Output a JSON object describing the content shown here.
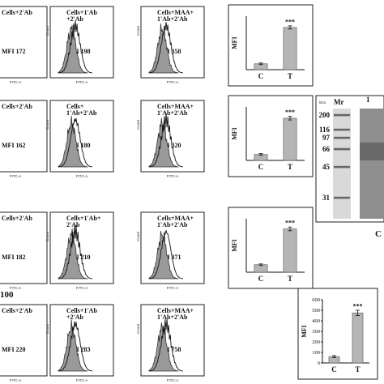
{
  "figure": {
    "row_tag": "100",
    "clipped_label": "C",
    "flow_panels": [
      {
        "label": "Cells+2'Ab",
        "mfi": "MFI 172"
      },
      {
        "label": "Cells+1'Ab\n+2'Ab",
        "mfi": "MFI 198"
      },
      {
        "label": "Cells+MAA+\n1'Ab+2'Ab",
        "mfi": "MFI 358"
      },
      {
        "label": "Cells+2'Ab",
        "mfi": "MFI 162"
      },
      {
        "label": "Cells+\n1'Ab+2'Ab",
        "mfi": "MFI 180"
      },
      {
        "label": "Cells+MAA+\n1'Ab+2'Ab",
        "mfi": "MFI 320"
      },
      {
        "label": "Cells+2'Ab",
        "mfi": "MFI 182"
      },
      {
        "label": "Cells+1'Ab+\n2'Ab",
        "mfi": "MFI 210"
      },
      {
        "label": "Cells+MAA+\n1'Ab+2'Ab",
        "mfi": "MFI 371"
      },
      {
        "label": "Cells+2'Ab",
        "mfi": "MFI 220"
      },
      {
        "label": "Cells+1'Ab\n+2'Ab",
        "mfi": "MFI 283"
      },
      {
        "label": "Cells+MAA+\n1'Ab+2'Ab",
        "mfi": "MFI 758"
      }
    ],
    "axis_small": {
      "x": "FITC-A",
      "y": "Count"
    },
    "gel": {
      "unit": "kDa",
      "marker_lane": "Mr",
      "sample_lane": "1",
      "markers": [
        "200",
        "116",
        "97",
        "66",
        "45",
        "31"
      ]
    }
  },
  "chart_data": [
    {
      "type": "bar",
      "categories": [
        "C",
        "T"
      ],
      "values": [
        22,
        158
      ],
      "errors": [
        3,
        6
      ],
      "significance": [
        "",
        "***"
      ],
      "ylabel": "MFI",
      "yticks": [],
      "ylim": [
        0,
        200
      ]
    },
    {
      "type": "bar",
      "categories": [
        "C",
        "T"
      ],
      "values": [
        20,
        142
      ],
      "errors": [
        3,
        6
      ],
      "significance": [
        "",
        "***"
      ],
      "ylabel": "MFI",
      "yticks": [],
      "ylim": [
        0,
        180
      ]
    },
    {
      "type": "bar",
      "categories": [
        "C",
        "T"
      ],
      "values": [
        28,
        162
      ],
      "errors": [
        3,
        7
      ],
      "significance": [
        "",
        "***"
      ],
      "ylabel": "MFI",
      "yticks": [],
      "ylim": [
        0,
        200
      ]
    },
    {
      "type": "bar",
      "categories": [
        "C",
        "T"
      ],
      "values": [
        60,
        475
      ],
      "errors": [
        10,
        25
      ],
      "significance": [
        "",
        "***"
      ],
      "ylabel": "MFI",
      "yticks": [
        "0",
        "100",
        "200",
        "300",
        "400",
        "500",
        "600"
      ],
      "ylim": [
        0,
        600
      ]
    }
  ]
}
